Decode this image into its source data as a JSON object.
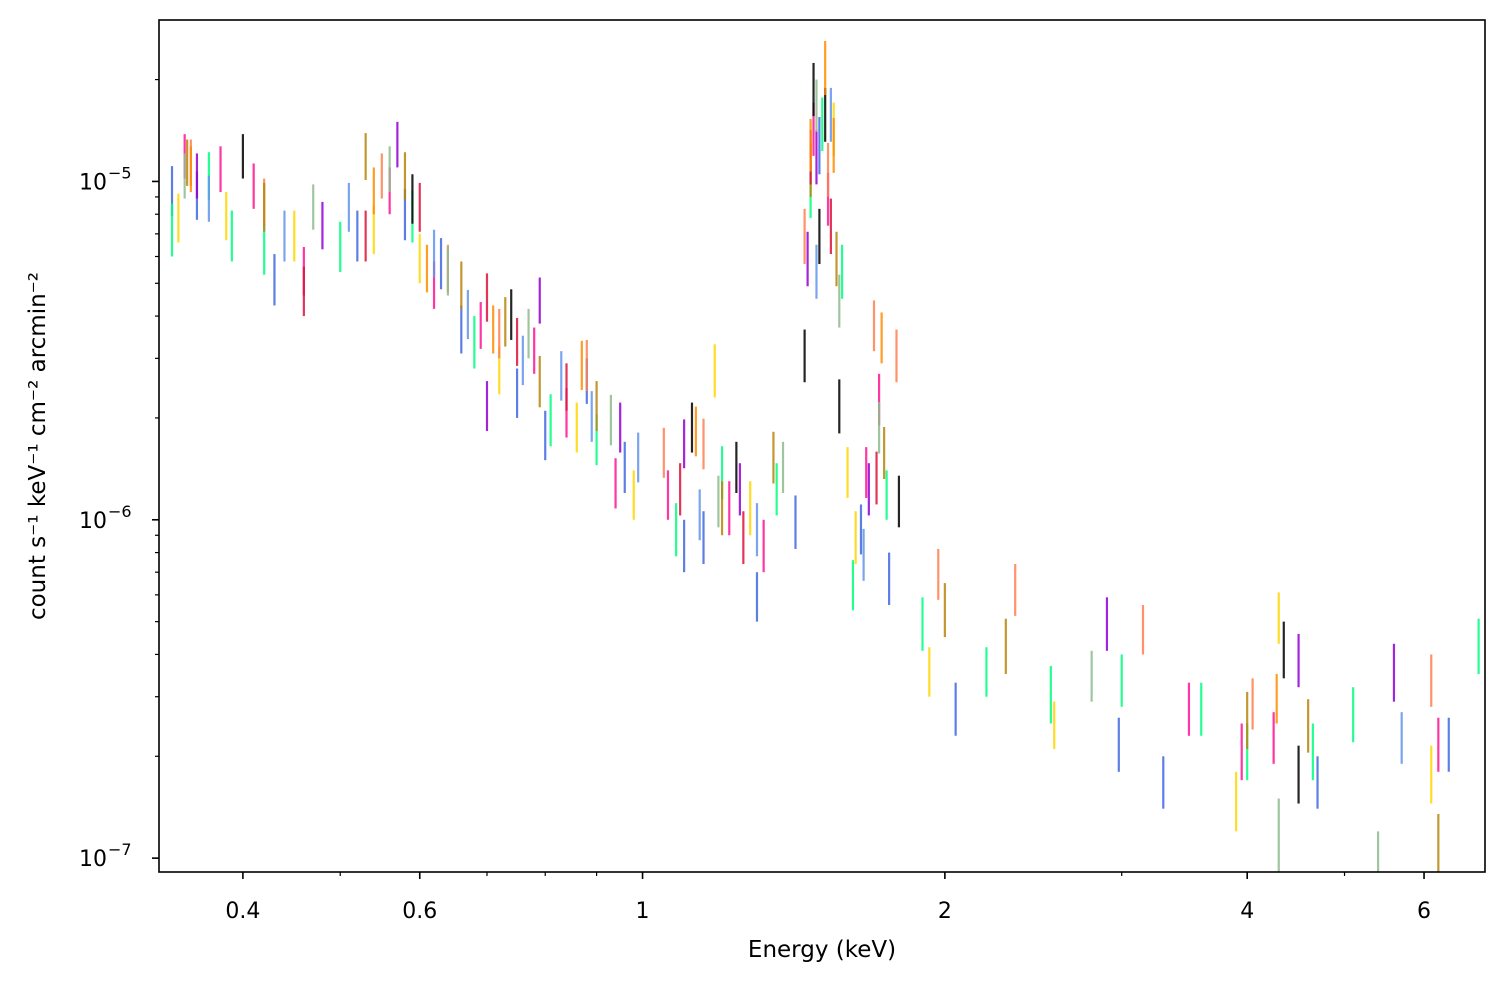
{
  "chart_data": {
    "type": "scatter",
    "style": "error-bars-only",
    "xlabel": "Energy (keV)",
    "ylabel": "count s⁻¹ keV⁻¹ cm⁻² arcmin⁻²",
    "xscale": "log",
    "yscale": "log",
    "xlim": [
      0.33,
      6.9
    ],
    "ylim": [
      9.1e-08,
      3e-05
    ],
    "x_ticks": [
      {
        "value": 0.4,
        "label": "0.4"
      },
      {
        "value": 0.6,
        "label": "0.6"
      },
      {
        "value": 1,
        "label": "1"
      },
      {
        "value": 2,
        "label": "2"
      },
      {
        "value": 4,
        "label": "4"
      },
      {
        "value": 6,
        "label": "6"
      }
    ],
    "y_ticks": [
      {
        "value": 1e-07,
        "base": "10",
        "exp": "−7"
      },
      {
        "value": 1e-06,
        "base": "10",
        "exp": "−6"
      },
      {
        "value": 1e-05,
        "base": "10",
        "exp": "−5"
      }
    ],
    "grid": false,
    "legend": "none",
    "palette": [
      "#4169e1",
      "#ff1493",
      "#00ff7f",
      "#ffd700",
      "#ff7f50",
      "#9400d3",
      "#b8860b",
      "#000000",
      "#8fbc8f",
      "#dc143c",
      "#6495ed",
      "#ff8c00"
    ],
    "series": [
      {
        "color": "#4169e1",
        "points": [
          [
            0.34,
            9.5e-06,
            1.6e-06
          ],
          [
            0.36,
            9.2e-06,
            1.5e-06
          ],
          [
            0.43,
            5.2e-06,
            9e-07
          ],
          [
            0.52,
            7e-06,
            1.2e-06
          ],
          [
            0.58,
            8.1e-06,
            1.4e-06
          ],
          [
            0.63,
            5.8e-06,
            1e-06
          ],
          [
            0.66,
            3.7e-06,
            6e-07
          ],
          [
            0.75,
            2.4e-06,
            4e-07
          ],
          [
            0.8,
            1.8e-06,
            3e-07
          ],
          [
            0.88,
            2.6e-06,
            4e-07
          ],
          [
            0.96,
            1.45e-06,
            2.5e-07
          ],
          [
            1.1,
            8.5e-07,
            1.5e-07
          ],
          [
            1.15,
            9e-07,
            1.6e-07
          ],
          [
            1.3,
            6e-07,
            1e-07
          ],
          [
            1.42,
            1e-06,
            1.8e-07
          ],
          [
            1.5,
            1.3e-05,
            2.5e-06
          ],
          [
            1.65,
            9.5e-07,
            1.6e-07
          ],
          [
            1.76,
            6.8e-07,
            1.2e-07
          ],
          [
            2.05,
            2.8e-07,
            5e-08
          ],
          [
            2.98,
            2.2e-07,
            4e-08
          ],
          [
            3.3,
            1.7e-07,
            3e-08
          ],
          [
            4.7,
            1.7e-07,
            3e-08
          ],
          [
            6.35,
            2.2e-07,
            4e-08
          ]
        ]
      },
      {
        "color": "#ff1493",
        "points": [
          [
            0.35,
            1.2e-05,
            1.8e-06
          ],
          [
            0.38,
            1.1e-05,
            1.7e-06
          ],
          [
            0.41,
            9.8e-06,
            1.5e-06
          ],
          [
            0.46,
            5.5e-06,
            9e-07
          ],
          [
            0.56,
            9.5e-06,
            1.5e-06
          ],
          [
            0.62,
            5e-06,
            8e-07
          ],
          [
            0.69,
            3.8e-06,
            6e-07
          ],
          [
            0.78,
            3.2e-06,
            5e-07
          ],
          [
            0.84,
            2.1e-06,
            3.5e-07
          ],
          [
            0.94,
            1.3e-06,
            2.2e-07
          ],
          [
            1.06,
            1.2e-06,
            2e-07
          ],
          [
            1.22,
            1.1e-06,
            2e-07
          ],
          [
            1.32,
            8.5e-07,
            1.5e-07
          ],
          [
            1.48,
            1.45e-05,
            2.6e-06
          ],
          [
            1.53,
            9e-06,
            1.6e-06
          ],
          [
            1.67,
            1.4e-06,
            2.4e-07
          ],
          [
            1.72,
            2.3e-06,
            4e-07
          ],
          [
            3.5,
            2.8e-07,
            5e-08
          ],
          [
            3.95,
            2.1e-07,
            4e-08
          ],
          [
            4.25,
            2.3e-07,
            4e-08
          ],
          [
            6.2,
            2.2e-07,
            4e-08
          ]
        ]
      },
      {
        "color": "#00ff7f",
        "points": [
          [
            0.34,
            7.3e-06,
            1.3e-06
          ],
          [
            0.37,
            1.05e-05,
            1.7e-06
          ],
          [
            0.39,
            7e-06,
            1.2e-06
          ],
          [
            0.42,
            6.4e-06,
            1.1e-06
          ],
          [
            0.5,
            6.5e-06,
            1.1e-06
          ],
          [
            0.59,
            8e-06,
            1.4e-06
          ],
          [
            0.68,
            3.4e-06,
            6e-07
          ],
          [
            0.81,
            2e-06,
            3.5e-07
          ],
          [
            0.9,
            1.75e-06,
            3e-07
          ],
          [
            1.08,
            9.5e-07,
            1.7e-07
          ],
          [
            1.2,
            1.4e-06,
            2.5e-07
          ],
          [
            1.36,
            1.25e-06,
            2.2e-07
          ],
          [
            1.47,
            9.5e-06,
            1.7e-06
          ],
          [
            1.51,
            1.5e-05,
            2.7e-06
          ],
          [
            1.58,
            5.5e-06,
            1e-06
          ],
          [
            1.62,
            6.5e-07,
            1.1e-07
          ],
          [
            1.75,
            1.2e-06,
            2e-07
          ],
          [
            1.9,
            5e-07,
            9e-08
          ],
          [
            2.2,
            3.6e-07,
            6e-08
          ],
          [
            2.55,
            3.1e-07,
            6e-08
          ],
          [
            3.0,
            3.4e-07,
            6e-08
          ],
          [
            3.6,
            2.8e-07,
            5e-08
          ],
          [
            4.0,
            2.1e-07,
            4e-08
          ],
          [
            4.65,
            2.1e-07,
            4e-08
          ],
          [
            5.1,
            2.7e-07,
            5e-08
          ],
          [
            6.8,
            4.3e-07,
            8e-08
          ]
        ]
      },
      {
        "color": "#ffd700",
        "points": [
          [
            0.345,
            7.9e-06,
            1.3e-06
          ],
          [
            0.385,
            8e-06,
            1.3e-06
          ],
          [
            0.45,
            7e-06,
            1.2e-06
          ],
          [
            0.54,
            7.3e-06,
            1.2e-06
          ],
          [
            0.6,
            6e-06,
            1e-06
          ],
          [
            0.72,
            2.8e-06,
            4.5e-07
          ],
          [
            0.86,
            1.9e-06,
            3.2e-07
          ],
          [
            0.98,
            1.2e-06,
            2e-07
          ],
          [
            1.18,
            2.8e-06,
            5e-07
          ],
          [
            1.28,
            1.1e-06,
            2e-07
          ],
          [
            1.55,
            1.45e-05,
            2.6e-06
          ],
          [
            1.6,
            1.4e-06,
            2.4e-07
          ],
          [
            1.63,
            9e-07,
            1.6e-07
          ],
          [
            1.93,
            3.6e-07,
            6e-08
          ],
          [
            2.57,
            2.5e-07,
            4e-08
          ],
          [
            3.9,
            1.5e-07,
            3e-08
          ],
          [
            4.3,
            5.2e-07,
            9e-08
          ],
          [
            6.1,
            1.8e-07,
            3.5e-08
          ]
        ]
      },
      {
        "color": "#ff7f50",
        "points": [
          [
            0.355,
            1.15e-05,
            1.8e-06
          ],
          [
            0.42,
            8.8e-06,
            1.4e-06
          ],
          [
            0.55,
            1.05e-05,
            1.6e-06
          ],
          [
            0.64,
            5.6e-06,
            9e-07
          ],
          [
            0.72,
            3.6e-06,
            6e-07
          ],
          [
            0.88,
            2.9e-06,
            5e-07
          ],
          [
            1.05,
            1.6e-06,
            2.7e-07
          ],
          [
            1.15,
            1.7e-06,
            2.9e-07
          ],
          [
            1.45,
            7e-06,
            1.3e-06
          ],
          [
            1.53,
            1.1e-05,
            2e-06
          ],
          [
            1.7,
            3.8e-06,
            6.5e-07
          ],
          [
            1.79,
            3.1e-06,
            5.5e-07
          ],
          [
            1.97,
            7e-07,
            1.2e-07
          ],
          [
            2.35,
            6.3e-07,
            1.1e-07
          ],
          [
            3.15,
            4.8e-07,
            8e-08
          ],
          [
            4.05,
            2.9e-07,
            5e-08
          ],
          [
            6.1,
            3.4e-07,
            6e-08
          ]
        ]
      },
      {
        "color": "#9400d3",
        "points": [
          [
            0.36,
            1.05e-05,
            1.6e-06
          ],
          [
            0.48,
            7.5e-06,
            1.2e-06
          ],
          [
            0.57,
            1.3e-05,
            2e-06
          ],
          [
            0.7,
            2.2e-06,
            3.7e-07
          ],
          [
            0.79,
            4.5e-06,
            7e-07
          ],
          [
            0.95,
            1.9e-06,
            3.2e-07
          ],
          [
            1.1,
            1.7e-06,
            2.8e-07
          ],
          [
            1.25,
            1.25e-06,
            2.2e-07
          ],
          [
            1.46,
            6e-06,
            1.1e-06
          ],
          [
            1.49,
            1.2e-05,
            2.2e-06
          ],
          [
            1.68,
            1.25e-06,
            2.2e-07
          ],
          [
            2.9,
            5e-07,
            9e-08
          ],
          [
            4.5,
            3.9e-07,
            7e-08
          ],
          [
            5.6,
            3.6e-07,
            7e-08
          ]
        ]
      },
      {
        "color": "#b8860b",
        "points": [
          [
            0.352,
            1.15e-05,
            1.8e-06
          ],
          [
            0.42,
            8.5e-06,
            1.4e-06
          ],
          [
            0.53,
            1.2e-05,
            1.9e-06
          ],
          [
            0.58,
            1.05e-05,
            1.7e-06
          ],
          [
            0.66,
            5e-06,
            8e-07
          ],
          [
            0.73,
            3.9e-06,
            6.5e-07
          ],
          [
            0.79,
            2.6e-06,
            4.5e-07
          ],
          [
            0.9,
            2.2e-06,
            3.7e-07
          ],
          [
            1.2,
            1.1e-06,
            2e-07
          ],
          [
            1.35,
            1.55e-06,
            2.7e-07
          ],
          [
            1.47,
            1.1e-05,
            2e-06
          ],
          [
            1.56,
            6e-06,
            1.1e-06
          ],
          [
            1.74,
            1.6e-06,
            2.8e-07
          ],
          [
            2.0,
            5.5e-07,
            1e-07
          ],
          [
            2.3,
            4.3e-07,
            8e-08
          ],
          [
            4.0,
            2.6e-07,
            5e-08
          ],
          [
            4.6,
            2.5e-07,
            4.5e-08
          ],
          [
            6.2,
            1.1e-07,
            2.5e-08
          ]
        ]
      },
      {
        "color": "#000000",
        "points": [
          [
            0.4,
            1.2e-05,
            1.8e-06
          ],
          [
            0.59,
            9e-06,
            1.5e-06
          ],
          [
            0.74,
            4.1e-06,
            7e-07
          ],
          [
            1.12,
            1.9e-06,
            3.2e-07
          ],
          [
            1.24,
            1.45e-06,
            2.5e-07
          ],
          [
            1.45,
            3.1e-06,
            5.5e-07
          ],
          [
            1.48,
            1.9e-05,
            3.4e-06
          ],
          [
            1.5,
            7e-06,
            1.3e-06
          ],
          [
            1.52,
            1.6e-05,
            2.9e-06
          ],
          [
            1.57,
            2.2e-06,
            4e-07
          ],
          [
            1.8,
            1.15e-06,
            2e-07
          ],
          [
            4.35,
            4.2e-07,
            8e-08
          ],
          [
            4.5,
            1.8e-07,
            3.5e-08
          ]
        ]
      },
      {
        "color": "#8fbc8f",
        "points": [
          [
            0.35,
            1.05e-05,
            1.6e-06
          ],
          [
            0.47,
            8.5e-06,
            1.3e-06
          ],
          [
            0.56,
            1.1e-05,
            1.7e-06
          ],
          [
            0.64,
            5.5e-06,
            9e-07
          ],
          [
            0.77,
            3.6e-06,
            6e-07
          ],
          [
            0.93,
            2e-06,
            3.4e-07
          ],
          [
            1.19,
            1.15e-06,
            2e-07
          ],
          [
            1.38,
            1.45e-06,
            2.5e-07
          ],
          [
            1.49,
            1.7e-05,
            3e-06
          ],
          [
            1.57,
            4.5e-06,
            8e-07
          ],
          [
            1.72,
            1.9e-06,
            3.3e-07
          ],
          [
            2.8,
            3.5e-07,
            6e-08
          ],
          [
            4.3,
            1.2e-07,
            3e-08
          ],
          [
            5.4,
            1e-07,
            2e-08
          ]
        ]
      },
      {
        "color": "#dc143c",
        "points": [
          [
            0.46,
            4.8e-06,
            8e-07
          ],
          [
            0.53,
            7e-06,
            1.2e-06
          ],
          [
            0.6,
            8.5e-06,
            1.4e-06
          ],
          [
            0.7,
            4.6e-06,
            7.5e-07
          ],
          [
            0.75,
            3.4e-06,
            5.5e-07
          ],
          [
            0.84,
            2.5e-06,
            4e-07
          ],
          [
            1.09,
            1.25e-06,
            2.2e-07
          ],
          [
            1.26,
            9e-07,
            1.6e-07
          ],
          [
            1.47,
            1.2e-05,
            2.2e-06
          ],
          [
            1.54,
            7.5e-06,
            1.4e-06
          ],
          [
            1.71,
            1.35e-06,
            2.4e-07
          ]
        ]
      },
      {
        "color": "#6495ed",
        "points": [
          [
            0.37,
            9e-06,
            1.4e-06
          ],
          [
            0.44,
            7e-06,
            1.2e-06
          ],
          [
            0.51,
            8.5e-06,
            1.4e-06
          ],
          [
            0.62,
            6.2e-06,
            1e-06
          ],
          [
            0.67,
            4.1e-06,
            6.8e-07
          ],
          [
            0.76,
            3e-06,
            5e-07
          ],
          [
            0.83,
            2.7e-06,
            4.5e-07
          ],
          [
            0.89,
            2.05e-06,
            3.5e-07
          ],
          [
            0.99,
            1.55e-06,
            2.6e-07
          ],
          [
            1.14,
            1.05e-06,
            1.8e-07
          ],
          [
            1.3,
            9.5e-07,
            1.7e-07
          ],
          [
            1.49,
            5.5e-06,
            1e-06
          ],
          [
            1.54,
            1.6e-05,
            2.9e-06
          ],
          [
            1.66,
            8e-07,
            1.4e-07
          ],
          [
            5.7,
            2.3e-07,
            4e-08
          ]
        ]
      },
      {
        "color": "#ff8c00",
        "points": [
          [
            0.355,
            1.1e-05,
            1.7e-06
          ],
          [
            0.54,
            9.5e-06,
            1.5e-06
          ],
          [
            0.61,
            5.6e-06,
            9e-07
          ],
          [
            0.71,
            3.7e-06,
            6e-07
          ],
          [
            0.87,
            2.9e-06,
            4.8e-07
          ],
          [
            1.13,
            1.85e-06,
            3.1e-07
          ],
          [
            1.47,
            1.3e-05,
            2.3e-06
          ],
          [
            1.52,
            2.2e-05,
            4e-06
          ],
          [
            1.55,
            1.3e-05,
            2.4e-06
          ],
          [
            1.73,
            3.5e-06,
            6e-07
          ],
          [
            4.28,
            3e-07,
            5e-08
          ]
        ]
      }
    ]
  }
}
